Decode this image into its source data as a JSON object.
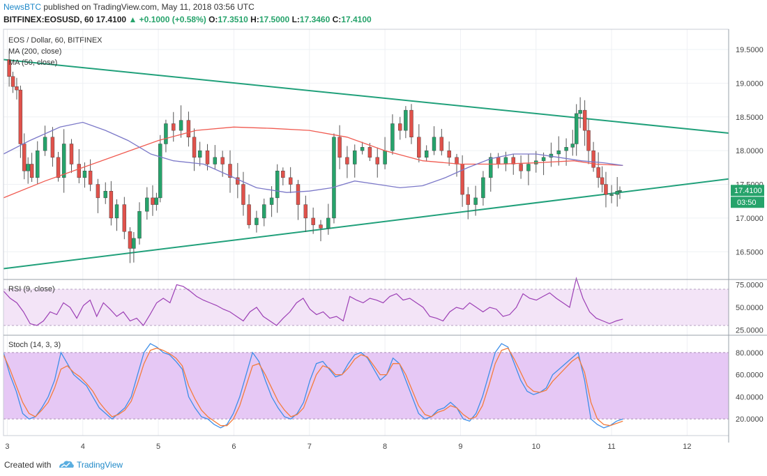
{
  "header": {
    "publisher": "NewsBTC",
    "published_text": "published on TradingView.com, May 11, 2018 03:56 UTC",
    "symbol": "BITFINEX:EOSUSD, 60",
    "last": "17.4100",
    "arrow": "▲",
    "change": "+0.1000 (+0.58%)",
    "o_label": "O:",
    "o": "17.3510",
    "h_label": "H:",
    "h": "17.5000",
    "l_label": "L:",
    "l": "17.3460",
    "c_label": "C:",
    "c": "17.4100"
  },
  "footer": {
    "created_with": "Created with",
    "brand": "TradingView"
  },
  "colors": {
    "up": "#26a36b",
    "down": "#e0524b",
    "trendline": "#20a07a",
    "ma200": "#f05a50",
    "ma50": "#7b78c8",
    "rsi": "#9c3fb5",
    "rsi_band": "#f3e4f7",
    "stoch_band": "#e6c8f5",
    "stoch_k": "#3d8ee8",
    "stoch_d": "#f47c3c",
    "brand": "#1e88c8"
  },
  "chart_data": {
    "type": "candlestick",
    "title": "EOS / Dollar, 60, BITFINEX",
    "indicators": [
      "MA (200, close)",
      "MA (50, close)"
    ],
    "x_ticks": [
      "3",
      "4",
      "5",
      "6",
      "7",
      "8",
      "9",
      "10",
      "11",
      "12"
    ],
    "y_ticks": [
      "19.5000",
      "19.0000",
      "18.5000",
      "18.0000",
      "17.5000",
      "17.0000",
      "16.5000"
    ],
    "ylim": [
      16.1,
      19.8
    ],
    "xlim": [
      2.95,
      12.55
    ],
    "last_price_label": "17.4100",
    "countdown_label": "03:50",
    "price_path": [
      [
        3.0,
        19.35
      ],
      [
        3.05,
        19.1
      ],
      [
        3.1,
        18.95
      ],
      [
        3.15,
        18.9
      ],
      [
        3.2,
        18.1
      ],
      [
        3.25,
        17.7
      ],
      [
        3.3,
        17.8
      ],
      [
        3.35,
        17.6
      ],
      [
        3.45,
        18.0
      ],
      [
        3.55,
        18.2
      ],
      [
        3.65,
        17.9
      ],
      [
        3.7,
        17.6
      ],
      [
        3.8,
        18.1
      ],
      [
        3.9,
        17.8
      ],
      [
        4.0,
        17.6
      ],
      [
        4.05,
        17.7
      ],
      [
        4.15,
        17.5
      ],
      [
        4.25,
        17.3
      ],
      [
        4.35,
        17.4
      ],
      [
        4.4,
        17.0
      ],
      [
        4.5,
        17.2
      ],
      [
        4.6,
        16.8
      ],
      [
        4.65,
        16.55
      ],
      [
        4.7,
        16.7
      ],
      [
        4.8,
        17.1
      ],
      [
        4.9,
        17.3
      ],
      [
        4.95,
        17.2
      ],
      [
        5.0,
        17.3
      ],
      [
        5.05,
        18.1
      ],
      [
        5.15,
        18.4
      ],
      [
        5.25,
        18.3
      ],
      [
        5.35,
        18.45
      ],
      [
        5.45,
        18.2
      ],
      [
        5.5,
        17.9
      ],
      [
        5.6,
        18.0
      ],
      [
        5.7,
        17.8
      ],
      [
        5.8,
        17.9
      ],
      [
        5.9,
        17.8
      ],
      [
        6.0,
        17.6
      ],
      [
        6.1,
        17.5
      ],
      [
        6.15,
        17.2
      ],
      [
        6.25,
        16.9
      ],
      [
        6.35,
        17.0
      ],
      [
        6.45,
        17.2
      ],
      [
        6.55,
        17.3
      ],
      [
        6.6,
        17.7
      ],
      [
        6.7,
        17.6
      ],
      [
        6.8,
        17.5
      ],
      [
        6.9,
        17.2
      ],
      [
        7.0,
        17.0
      ],
      [
        7.1,
        16.9
      ],
      [
        7.2,
        16.85
      ],
      [
        7.3,
        17.0
      ],
      [
        7.35,
        18.2
      ],
      [
        7.45,
        17.9
      ],
      [
        7.55,
        17.8
      ],
      [
        7.65,
        18.0
      ],
      [
        7.75,
        18.05
      ],
      [
        7.85,
        17.9
      ],
      [
        7.95,
        17.8
      ],
      [
        8.05,
        18.0
      ],
      [
        8.15,
        18.4
      ],
      [
        8.25,
        18.3
      ],
      [
        8.3,
        18.6
      ],
      [
        8.4,
        18.2
      ],
      [
        8.5,
        17.9
      ],
      [
        8.6,
        18.0
      ],
      [
        8.7,
        18.2
      ],
      [
        8.8,
        18.0
      ],
      [
        8.9,
        17.9
      ],
      [
        9.0,
        17.8
      ],
      [
        9.05,
        17.35
      ],
      [
        9.15,
        17.2
      ],
      [
        9.25,
        17.3
      ],
      [
        9.35,
        17.6
      ],
      [
        9.45,
        17.9
      ],
      [
        9.55,
        17.8
      ],
      [
        9.65,
        17.9
      ],
      [
        9.75,
        17.8
      ],
      [
        9.85,
        17.7
      ],
      [
        9.95,
        17.8
      ],
      [
        10.05,
        17.85
      ],
      [
        10.15,
        17.9
      ],
      [
        10.25,
        17.95
      ],
      [
        10.35,
        18.0
      ],
      [
        10.45,
        18.05
      ],
      [
        10.52,
        18.1
      ],
      [
        10.55,
        18.55
      ],
      [
        10.62,
        18.6
      ],
      [
        10.67,
        18.3
      ],
      [
        10.72,
        18.0
      ],
      [
        10.8,
        17.75
      ],
      [
        10.85,
        17.6
      ],
      [
        10.9,
        17.5
      ],
      [
        10.95,
        17.35
      ],
      [
        11.05,
        17.35
      ],
      [
        11.1,
        17.4
      ],
      [
        11.12,
        17.41
      ]
    ],
    "trendlines": [
      {
        "x": [
          2.95,
          12.55
        ],
        "y": [
          19.35,
          18.26
        ]
      },
      {
        "x": [
          2.95,
          12.55
        ],
        "y": [
          16.25,
          17.58
        ]
      }
    ],
    "ma200_path": [
      [
        2.95,
        17.3
      ],
      [
        3.5,
        17.55
      ],
      [
        4.0,
        17.75
      ],
      [
        4.5,
        17.95
      ],
      [
        5.0,
        18.15
      ],
      [
        5.5,
        18.3
      ],
      [
        6.0,
        18.35
      ],
      [
        6.5,
        18.33
      ],
      [
        7.0,
        18.3
      ],
      [
        7.5,
        18.2
      ],
      [
        8.0,
        18.0
      ],
      [
        8.5,
        17.85
      ],
      [
        9.0,
        17.8
      ],
      [
        9.5,
        17.8
      ],
      [
        10.0,
        17.82
      ],
      [
        10.5,
        17.85
      ],
      [
        10.8,
        17.8
      ],
      [
        11.15,
        17.78
      ]
    ],
    "ma50_path": [
      [
        2.95,
        17.95
      ],
      [
        3.3,
        18.15
      ],
      [
        3.7,
        18.35
      ],
      [
        4.0,
        18.42
      ],
      [
        4.3,
        18.3
      ],
      [
        4.6,
        18.15
      ],
      [
        4.9,
        17.95
      ],
      [
        5.2,
        17.85
      ],
      [
        5.6,
        17.8
      ],
      [
        6.0,
        17.6
      ],
      [
        6.3,
        17.45
      ],
      [
        6.7,
        17.38
      ],
      [
        7.0,
        17.4
      ],
      [
        7.3,
        17.45
      ],
      [
        7.6,
        17.55
      ],
      [
        7.9,
        17.5
      ],
      [
        8.2,
        17.45
      ],
      [
        8.5,
        17.48
      ],
      [
        8.8,
        17.6
      ],
      [
        9.1,
        17.75
      ],
      [
        9.4,
        17.88
      ],
      [
        9.7,
        17.95
      ],
      [
        10.0,
        17.95
      ],
      [
        10.3,
        17.9
      ],
      [
        10.6,
        17.85
      ],
      [
        10.9,
        17.82
      ],
      [
        11.15,
        17.78
      ]
    ],
    "rsi": {
      "label": "RSI (9, close)",
      "y_ticks": [
        "75.0000",
        "50.0000",
        "25.0000"
      ],
      "ylim": [
        20,
        80
      ],
      "values": [
        68,
        60,
        55,
        45,
        32,
        30,
        35,
        45,
        42,
        55,
        50,
        38,
        52,
        58,
        40,
        55,
        48,
        40,
        45,
        35,
        38,
        30,
        42,
        55,
        60,
        55,
        75,
        73,
        68,
        62,
        58,
        55,
        52,
        48,
        45,
        40,
        35,
        45,
        50,
        40,
        35,
        30,
        38,
        45,
        55,
        60,
        48,
        42,
        45,
        38,
        40,
        35,
        62,
        58,
        55,
        60,
        58,
        55,
        62,
        65,
        58,
        60,
        55,
        50,
        40,
        38,
        35,
        45,
        50,
        48,
        55,
        50,
        45,
        50,
        48,
        40,
        42,
        50,
        65,
        60,
        58,
        62,
        66,
        60,
        55,
        50,
        82,
        60,
        45,
        38,
        35,
        32,
        35,
        37
      ]
    },
    "stochastic": {
      "label": "Stoch (14, 3, 3)",
      "y_ticks": [
        "80.0000",
        "60.0000",
        "40.0000",
        "20.0000"
      ],
      "ylim": [
        5,
        95
      ],
      "k": [
        80,
        60,
        45,
        25,
        20,
        22,
        30,
        40,
        55,
        80,
        70,
        60,
        55,
        50,
        40,
        30,
        25,
        20,
        25,
        30,
        40,
        60,
        80,
        88,
        85,
        80,
        78,
        72,
        65,
        40,
        30,
        22,
        20,
        15,
        12,
        15,
        25,
        40,
        60,
        80,
        72,
        55,
        40,
        30,
        22,
        20,
        25,
        35,
        55,
        70,
        72,
        65,
        58,
        60,
        70,
        78,
        80,
        75,
        65,
        55,
        60,
        75,
        70,
        55,
        40,
        25,
        20,
        22,
        28,
        30,
        35,
        30,
        20,
        18,
        25,
        40,
        60,
        80,
        88,
        85,
        70,
        55,
        45,
        42,
        44,
        48,
        60,
        65,
        70,
        75,
        80,
        55,
        20,
        15,
        12,
        14,
        18,
        20
      ],
      "d": [
        78,
        65,
        50,
        35,
        25,
        22,
        28,
        35,
        48,
        65,
        68,
        62,
        58,
        52,
        45,
        35,
        28,
        22,
        24,
        28,
        36,
        52,
        70,
        82,
        84,
        82,
        79,
        75,
        68,
        50,
        38,
        28,
        22,
        18,
        14,
        14,
        20,
        32,
        50,
        68,
        70,
        60,
        48,
        36,
        28,
        22,
        24,
        30,
        45,
        60,
        68,
        66,
        60,
        60,
        66,
        74,
        78,
        76,
        68,
        60,
        60,
        70,
        70,
        60,
        46,
        32,
        24,
        22,
        26,
        28,
        32,
        30,
        24,
        20,
        22,
        32,
        50,
        70,
        82,
        84,
        74,
        62,
        50,
        45,
        44,
        46,
        54,
        60,
        66,
        72,
        76,
        62,
        35,
        20,
        15,
        14,
        16,
        18
      ]
    }
  }
}
